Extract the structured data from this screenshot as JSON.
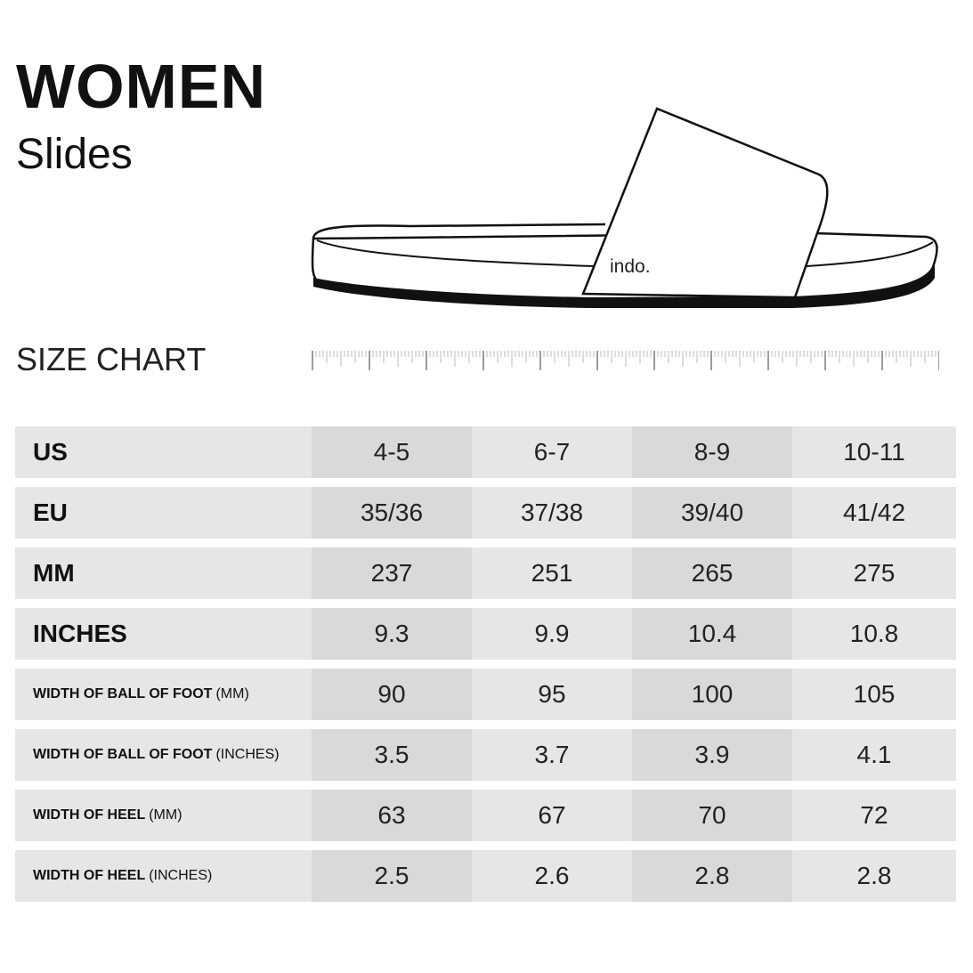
{
  "header": {
    "title": "WOMEN",
    "subtitle": "Slides",
    "chart_label": "SIZE CHART"
  },
  "illustration": {
    "brand_text": "indo."
  },
  "table": {
    "rows": [
      {
        "label": "US",
        "unit": "",
        "small": false,
        "values": [
          "4-5",
          "6-7",
          "8-9",
          "10-11"
        ]
      },
      {
        "label": "EU",
        "unit": "",
        "small": false,
        "values": [
          "35/36",
          "37/38",
          "39/40",
          "41/42"
        ]
      },
      {
        "label": "MM",
        "unit": "",
        "small": false,
        "values": [
          "237",
          "251",
          "265",
          "275"
        ]
      },
      {
        "label": "INCHES",
        "unit": "",
        "small": false,
        "values": [
          "9.3",
          "9.9",
          "10.4",
          "10.8"
        ]
      },
      {
        "label": "WIDTH OF BALL OF FOOT",
        "unit": "(MM)",
        "small": true,
        "values": [
          "90",
          "95",
          "100",
          "105"
        ]
      },
      {
        "label": "WIDTH OF BALL OF FOOT",
        "unit": "(INCHES)",
        "small": true,
        "values": [
          "3.5",
          "3.7",
          "3.9",
          "4.1"
        ]
      },
      {
        "label": "WIDTH OF HEEL",
        "unit": "(MM)",
        "small": true,
        "values": [
          "63",
          "67",
          "70",
          "72"
        ]
      },
      {
        "label": "WIDTH OF HEEL",
        "unit": "(INCHES)",
        "small": true,
        "values": [
          "2.5",
          "2.6",
          "2.8",
          "2.8"
        ]
      }
    ]
  }
}
